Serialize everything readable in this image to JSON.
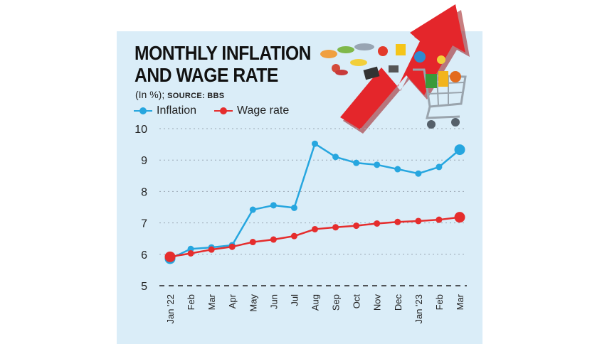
{
  "title_line1": "MONTHLY INFLATION",
  "title_line2": "AND WAGE RATE",
  "subtitle_unit": "(In %);",
  "subtitle_source": "SOURCE: BBS",
  "colors": {
    "panel": "#daedf8",
    "inflation": "#26a6df",
    "wage": "#e52d2d",
    "arrow": "#e4262b"
  },
  "illustration": "shopping-cart-with-red-up-arrow",
  "chart_data": {
    "type": "line",
    "categories": [
      "Jan '22",
      "Feb",
      "Mar",
      "Apr",
      "May",
      "Jun",
      "Jul",
      "Aug",
      "Sep",
      "Oct",
      "Nov",
      "Dec",
      "Jan '23",
      "Feb",
      "Mar"
    ],
    "series": [
      {
        "name": "Inflation",
        "color": "#26a6df",
        "values": [
          5.86,
          6.17,
          6.22,
          6.29,
          7.42,
          7.56,
          7.48,
          9.52,
          9.1,
          8.91,
          8.85,
          8.71,
          8.57,
          8.78,
          9.33
        ]
      },
      {
        "name": "Wage rate",
        "color": "#e52d2d",
        "values": [
          5.92,
          6.03,
          6.15,
          6.24,
          6.39,
          6.47,
          6.58,
          6.8,
          6.86,
          6.91,
          6.98,
          7.03,
          7.06,
          7.1,
          7.18
        ]
      }
    ],
    "ylim": [
      5,
      10
    ],
    "yticks": [
      5,
      6,
      7,
      8,
      9,
      10
    ],
    "grid": true,
    "legend_position": "top-left"
  }
}
